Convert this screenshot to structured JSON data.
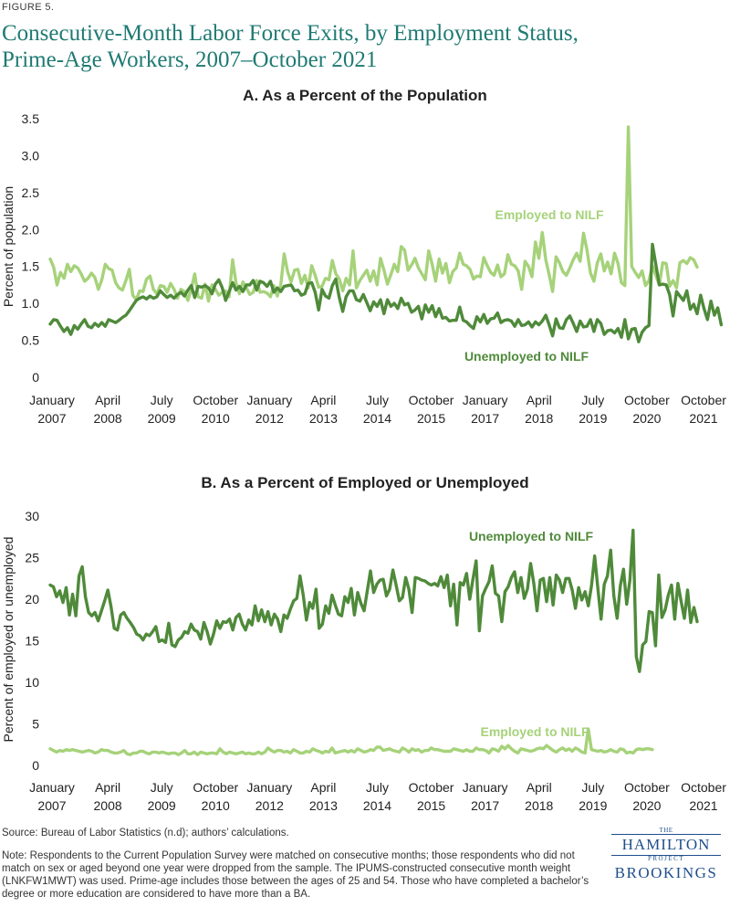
{
  "figure": {
    "label": "FIGURE 5.",
    "title": "Consecutive-Month Labor Force Exits, by Employment Status, Prime-Age Workers, 2007–October 2021"
  },
  "colors": {
    "employed": "#a6d27a",
    "unemployed": "#4f8a3a",
    "title": "#1f7a73",
    "axis": "#222222"
  },
  "chart_data": [
    {
      "type": "line",
      "title": "A. As a Percent of the Population",
      "ylabel": "Percent of population",
      "xlabel": "",
      "x_start": "2007-01",
      "x_end": "2021-10",
      "ylim": [
        0,
        3.5
      ],
      "yticks": [
        "0",
        "0.5",
        "1.0",
        "1.5",
        "2.0",
        "2.5",
        "3.0",
        "3.5"
      ],
      "xtick_labels": [
        {
          "month": "January",
          "year": "2007"
        },
        {
          "month": "April",
          "year": "2008"
        },
        {
          "month": "July",
          "year": "2009"
        },
        {
          "month": "October",
          "year": "2010"
        },
        {
          "month": "January",
          "year": "2012"
        },
        {
          "month": "April",
          "year": "2013"
        },
        {
          "month": "July",
          "year": "2014"
        },
        {
          "month": "October",
          "year": "2015"
        },
        {
          "month": "January",
          "year": "2017"
        },
        {
          "month": "April",
          "year": "2018"
        },
        {
          "month": "July",
          "year": "2019"
        },
        {
          "month": "October",
          "year": "2020"
        },
        {
          "month": "October",
          "year": "2021"
        }
      ],
      "grid": false,
      "series": [
        {
          "name": "Employed to NILF",
          "label_position": "upper-right",
          "values": [
            1.6,
            1.49,
            1.25,
            1.42,
            1.34,
            1.53,
            1.43,
            1.51,
            1.48,
            1.4,
            1.3,
            1.34,
            1.41,
            1.35,
            1.19,
            1.32,
            1.53,
            1.47,
            1.45,
            1.28,
            1.21,
            1.18,
            1.31,
            1.46,
            1.11,
            1.05,
            1.17,
            1.16,
            1.33,
            1.37,
            1.19,
            1.13,
            1.24,
            1.23,
            1.15,
            1.27,
            1.19,
            1.07,
            1.19,
            1.16,
            1.04,
            1.2,
            1.4,
            1.09,
            1.07,
            1.26,
            1.03,
            1.25,
            1.19,
            1.11,
            1.15,
            1.17,
            1.09,
            1.59,
            1.28,
            1.13,
            1.29,
            1.21,
            1.12,
            1.15,
            1.31,
            1.15,
            1.16,
            1.14,
            1.09,
            1.24,
            1.1,
            1.25,
            1.67,
            1.43,
            1.29,
            1.45,
            1.46,
            1.27,
            1.38,
            1.21,
            1.51,
            1.38,
            1.22,
            1.23,
            1.34,
            1.32,
            1.58,
            1.4,
            1.33,
            1.17,
            1.34,
            1.25,
            1.71,
            1.21,
            1.31,
            1.38,
            1.45,
            1.3,
            1.44,
            1.25,
            1.61,
            1.45,
            1.26,
            1.39,
            1.53,
            1.43,
            1.77,
            1.72,
            1.45,
            1.52,
            1.61,
            1.48,
            1.4,
            1.32,
            1.71,
            1.53,
            1.3,
            1.6,
            1.41,
            1.54,
            1.28,
            1.43,
            1.48,
            1.68,
            1.53,
            1.51,
            1.46,
            1.33,
            1.37,
            1.36,
            1.62,
            1.51,
            1.42,
            1.38,
            1.52,
            1.36,
            1.4,
            1.66,
            1.53,
            1.51,
            1.44,
            1.19,
            1.57,
            1.5,
            1.36,
            1.83,
            1.61,
            1.96,
            1.59,
            1.39,
            1.16,
            1.63,
            1.55,
            1.43,
            1.38,
            1.48,
            1.59,
            1.68,
            1.57,
            1.95,
            1.72,
            1.41,
            1.3,
            1.55,
            1.67,
            1.44,
            1.56,
            1.4,
            1.68,
            1.54,
            1.28,
            1.24,
            3.39,
            1.5,
            1.42,
            1.35,
            1.44,
            1.24,
            1.31,
            1.51,
            1.38,
            1.25,
            1.55,
            1.54,
            1.23,
            1.31,
            1.21,
            1.55,
            1.58,
            1.54,
            1.62,
            1.59,
            1.49
          ]
        },
        {
          "name": "Unemployed to NILF",
          "label_position": "lower-right",
          "values": [
            0.72,
            0.78,
            0.77,
            0.69,
            0.62,
            0.67,
            0.58,
            0.7,
            0.65,
            0.72,
            0.78,
            0.69,
            0.67,
            0.73,
            0.69,
            0.74,
            0.69,
            0.78,
            0.76,
            0.74,
            0.77,
            0.81,
            0.84,
            0.9,
            0.97,
            1.04,
            1.07,
            1.09,
            1.06,
            1.1,
            1.07,
            1.09,
            1.17,
            1.12,
            1.08,
            1.11,
            1.07,
            1.12,
            1.15,
            1.1,
            1.18,
            1.24,
            1.08,
            1.23,
            1.22,
            1.24,
            1.21,
            1.13,
            1.26,
            1.32,
            1.21,
            1.04,
            1.16,
            1.28,
            1.18,
            1.23,
            1.16,
            1.25,
            1.25,
            1.31,
            1.18,
            1.3,
            1.28,
            1.23,
            1.3,
            1.15,
            1.21,
            1.16,
            1.23,
            1.24,
            1.25,
            1.17,
            1.18,
            1.11,
            1.13,
            1.27,
            1.28,
            1.15,
            0.91,
            1.19,
            1.1,
            1.07,
            1.24,
            1.33,
            1.08,
            0.89,
            1.09,
            1.17,
            1.17,
            1.05,
            1.03,
            1.12,
            1.01,
            0.9,
            1.02,
            0.96,
            1.05,
            0.86,
            1.05,
            0.96,
            1.0,
            0.93,
            1.07,
            0.98,
            1.0,
            0.88,
            0.91,
            0.96,
            0.79,
            0.98,
            0.88,
            0.97,
            0.82,
            0.93,
            0.8,
            0.81,
            0.76,
            0.77,
            0.77,
            0.95,
            0.77,
            0.75,
            0.7,
            0.66,
            0.82,
            0.75,
            0.85,
            0.73,
            0.79,
            0.8,
            0.87,
            0.74,
            0.77,
            0.78,
            0.76,
            0.69,
            0.78,
            0.7,
            0.71,
            0.75,
            0.68,
            0.75,
            0.71,
            0.76,
            0.84,
            0.71,
            0.56,
            0.79,
            0.67,
            0.66,
            0.78,
            0.83,
            0.73,
            0.62,
            0.76,
            0.68,
            0.69,
            0.78,
            0.62,
            0.78,
            0.73,
            0.58,
            0.63,
            0.64,
            0.6,
            0.66,
            0.54,
            0.78,
            0.52,
            0.65,
            0.66,
            0.48,
            0.61,
            0.67,
            0.7,
            1.8,
            1.53,
            1.25,
            1.26,
            1.25,
            1.12,
            0.83,
            1.16,
            1.1,
            1.04,
            1.17,
            0.92,
            0.99,
            0.86,
            1.11,
            0.93,
            0.78,
            1.03,
            0.84,
            0.94,
            0.71
          ]
        }
      ]
    },
    {
      "type": "line",
      "title": "B. As a Percent of Employed or Unemployed",
      "ylabel": "Percent of employed or unemployed",
      "xlabel": "",
      "x_start": "2007-01",
      "x_end": "2021-10",
      "ylim": [
        0,
        30
      ],
      "yticks": [
        "0",
        "5",
        "10",
        "15",
        "20",
        "25",
        "30"
      ],
      "xtick_labels": [
        {
          "month": "January",
          "year": "2007"
        },
        {
          "month": "April",
          "year": "2008"
        },
        {
          "month": "July",
          "year": "2009"
        },
        {
          "month": "October",
          "year": "2010"
        },
        {
          "month": "January",
          "year": "2012"
        },
        {
          "month": "April",
          "year": "2013"
        },
        {
          "month": "July",
          "year": "2014"
        },
        {
          "month": "October",
          "year": "2015"
        },
        {
          "month": "January",
          "year": "2017"
        },
        {
          "month": "April",
          "year": "2018"
        },
        {
          "month": "July",
          "year": "2019"
        },
        {
          "month": "October",
          "year": "2020"
        },
        {
          "month": "October",
          "year": "2021"
        }
      ],
      "grid": false,
      "series": [
        {
          "name": "Unemployed to NILF",
          "label_position": "upper-right",
          "values": [
            21.7,
            21.5,
            20.3,
            21.0,
            19.6,
            21.4,
            18.1,
            20.6,
            18.0,
            22.8,
            23.9,
            20.3,
            18.4,
            18.0,
            18.4,
            17.4,
            18.6,
            19.8,
            21.1,
            19.1,
            16.5,
            16.3,
            18.1,
            18.4,
            17.7,
            17.2,
            16.6,
            15.8,
            15.6,
            15.1,
            15.8,
            15.6,
            16.1,
            16.7,
            14.9,
            15.1,
            14.8,
            17.1,
            14.5,
            14.3,
            15.1,
            15.4,
            16.1,
            15.9,
            17.0,
            16.3,
            16.1,
            15.2,
            17.2,
            16.1,
            14.6,
            15.8,
            17.4,
            16.5,
            17.3,
            17.2,
            17.6,
            16.3,
            17.8,
            18.2,
            17.0,
            16.3,
            17.5,
            16.9,
            19.2,
            17.4,
            18.7,
            17.3,
            18.5,
            16.9,
            18.2,
            17.6,
            16.1,
            18.1,
            17.7,
            18.8,
            19.8,
            20.1,
            22.8,
            20.5,
            17.5,
            19.6,
            18.9,
            21.2,
            16.5,
            17.0,
            19.2,
            18.3,
            20.5,
            19.3,
            18.2,
            18.0,
            20.3,
            19.6,
            21.3,
            18.1,
            20.8,
            19.5,
            18.6,
            21.0,
            23.4,
            20.8,
            21.8,
            22.3,
            22.4,
            20.4,
            21.2,
            23.5,
            21.7,
            19.8,
            20.2,
            22.6,
            21.2,
            18.4,
            22.6,
            22.5,
            22.3,
            22.2,
            21.9,
            21.7,
            21.9,
            21.6,
            22.7,
            21.4,
            22.9,
            19.2,
            21.8,
            16.9,
            22.0,
            21.7,
            23.1,
            20.0,
            22.4,
            24.6,
            16.2,
            20.4,
            21.3,
            22.1,
            24.0,
            20.7,
            20.4,
            17.3,
            20.9,
            21.5,
            22.6,
            23.3,
            20.8,
            22.6,
            20.1,
            21.2,
            24.3,
            21.9,
            18.6,
            22.3,
            22.5,
            19.7,
            22.6,
            19.3,
            22.9,
            22.3,
            20.8,
            22.5,
            22.5,
            21.1,
            18.9,
            21.4,
            19.9,
            20.9,
            19.2,
            21.6,
            25.2,
            21.3,
            17.6,
            21.8,
            22.8,
            25.9,
            20.4,
            17.7,
            21.6,
            23.6,
            19.4,
            22.3,
            28.3,
            13.1,
            11.3,
            14.5,
            14.9,
            18.5,
            18.4,
            14.4,
            22.9,
            17.8,
            18.7,
            20.5,
            21.7,
            17.6,
            21.9,
            19.7,
            17.7,
            21.1,
            17.2,
            19.0,
            17.3
          ]
        },
        {
          "name": "Employed to NILF",
          "label_position": "lower-right",
          "values": [
            2.0,
            1.8,
            1.6,
            1.8,
            1.7,
            1.9,
            1.8,
            1.9,
            1.8,
            1.7,
            1.6,
            1.7,
            1.8,
            1.7,
            1.5,
            1.6,
            1.9,
            1.8,
            1.8,
            1.6,
            1.5,
            1.5,
            1.6,
            1.8,
            1.4,
            1.3,
            1.5,
            1.5,
            1.7,
            1.7,
            1.5,
            1.4,
            1.6,
            1.6,
            1.5,
            1.6,
            1.5,
            1.4,
            1.5,
            1.5,
            1.3,
            1.5,
            1.8,
            1.4,
            1.4,
            1.6,
            1.3,
            1.6,
            1.5,
            1.4,
            1.5,
            1.5,
            1.4,
            2.0,
            1.6,
            1.4,
            1.6,
            1.5,
            1.4,
            1.5,
            1.6,
            1.4,
            1.5,
            1.4,
            1.4,
            1.6,
            1.4,
            1.6,
            2.1,
            1.8,
            1.6,
            1.8,
            1.8,
            1.6,
            1.7,
            1.5,
            1.9,
            1.7,
            1.5,
            1.5,
            1.7,
            1.6,
            2.0,
            1.8,
            1.7,
            1.5,
            1.7,
            1.6,
            2.1,
            1.5,
            1.6,
            1.7,
            1.8,
            1.6,
            1.8,
            1.6,
            2.0,
            1.8,
            1.6,
            1.7,
            1.9,
            1.8,
            2.2,
            2.2,
            1.8,
            1.9,
            2.0,
            1.8,
            1.7,
            1.6,
            2.1,
            1.9,
            1.6,
            2.0,
            1.8,
            1.9,
            1.6,
            1.8,
            1.8,
            2.1,
            1.9,
            1.9,
            1.8,
            1.7,
            1.7,
            1.7,
            2.0,
            1.9,
            1.8,
            1.7,
            1.9,
            1.7,
            1.7,
            2.1,
            1.9,
            1.9,
            1.8,
            1.5,
            2.0,
            1.9,
            1.7,
            2.3,
            2.0,
            2.4,
            2.0,
            1.7,
            1.5,
            2.0,
            1.9,
            1.8,
            1.7,
            1.8,
            2.0,
            2.1,
            2.0,
            2.4,
            2.1,
            1.8,
            1.6,
            1.9,
            2.1,
            1.8,
            2.0,
            1.7,
            2.1,
            1.9,
            1.6,
            1.5,
            4.4,
            1.9,
            1.8,
            1.7,
            1.8,
            1.6,
            1.7,
            1.9,
            1.7,
            1.6,
            2.0,
            1.9,
            1.5,
            1.6,
            1.5,
            1.9,
            2.0,
            1.9,
            2.0,
            2.0,
            1.9
          ]
        }
      ]
    }
  ],
  "footer": {
    "source": "Source: Bureau of Labor Statistics (n.d); authors’ calculations.",
    "note": "Note: Respondents to the Current Population Survey were matched on consecutive months; those respondents who did not match on sex or aged beyond one year were dropped from the sample. The IPUMS-constructed consecutive month weight (LNKFW1MWT) was used. Prime-age includes those between the ages of 25 and 54. Those who have completed a bachelor’s degree or more education are considered to have more than a BA.",
    "logo": {
      "the": "THE",
      "hamilton": "HAMILTON",
      "project": "PROJECT",
      "brookings": "BROOKINGS"
    }
  }
}
